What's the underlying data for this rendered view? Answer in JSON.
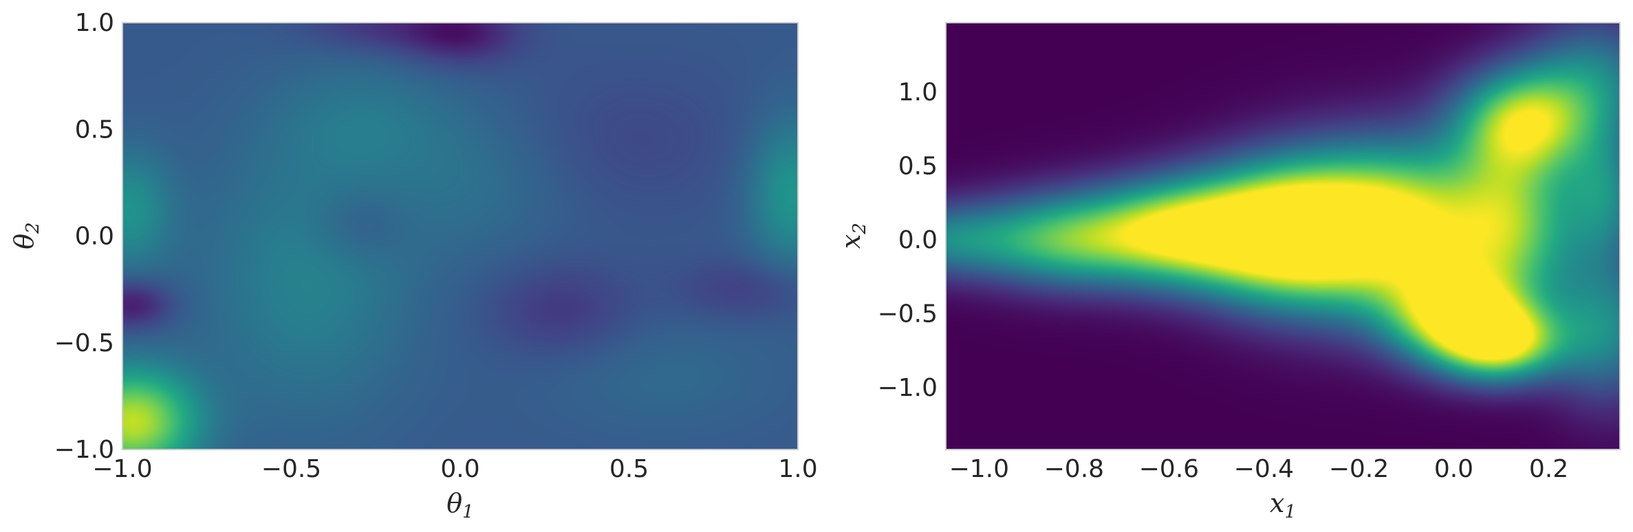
{
  "chart_data": [
    {
      "type": "heatmap",
      "id": "left",
      "colormap": "viridis",
      "title": "",
      "xlabel": "θ",
      "xlabel_sub": "1",
      "ylabel": "θ",
      "ylabel_sub": "2",
      "xlim": [
        -1.0,
        1.0
      ],
      "ylim": [
        -1.0,
        1.0
      ],
      "grid": false,
      "xticks": [
        {
          "value": -1.0,
          "label": "−1.0"
        },
        {
          "value": -0.5,
          "label": "−0.5"
        },
        {
          "value": 0.0,
          "label": "0.0"
        },
        {
          "value": 0.5,
          "label": "0.5"
        },
        {
          "value": 1.0,
          "label": "1.0"
        }
      ],
      "yticks": [
        {
          "value": 1.0,
          "label": "1.0"
        },
        {
          "value": 0.5,
          "label": "0.5"
        },
        {
          "value": 0.0,
          "label": "0.0"
        },
        {
          "value": -0.5,
          "label": "−0.5"
        },
        {
          "value": -1.0,
          "label": "−1.0"
        }
      ],
      "background_level": 0.28,
      "blobs": [
        {
          "x": -0.97,
          "y": -0.87,
          "amp": 0.62,
          "sx": 0.13,
          "sy": 0.17
        },
        {
          "x": -0.98,
          "y": 0.12,
          "amp": 0.22,
          "sx": 0.09,
          "sy": 0.2
        },
        {
          "x": 0.98,
          "y": 0.2,
          "amp": 0.24,
          "sx": 0.09,
          "sy": 0.25
        },
        {
          "x": -0.45,
          "y": -0.2,
          "amp": 0.16,
          "sx": 0.22,
          "sy": 0.45
        },
        {
          "x": -0.28,
          "y": 0.55,
          "amp": 0.1,
          "sx": 0.2,
          "sy": 0.2
        },
        {
          "x": 0.05,
          "y": 0.25,
          "amp": 0.08,
          "sx": 0.2,
          "sy": 0.25
        },
        {
          "x": 0.6,
          "y": -0.65,
          "amp": 0.06,
          "sx": 0.25,
          "sy": 0.2
        },
        {
          "x": -0.97,
          "y": -0.32,
          "amp": -0.22,
          "sx": 0.08,
          "sy": 0.08
        },
        {
          "x": 0.0,
          "y": 0.95,
          "amp": -0.22,
          "sx": 0.12,
          "sy": 0.1
        },
        {
          "x": -0.25,
          "y": 0.98,
          "amp": -0.12,
          "sx": 0.15,
          "sy": 0.08
        },
        {
          "x": 0.3,
          "y": -0.35,
          "amp": -0.12,
          "sx": 0.15,
          "sy": 0.15
        },
        {
          "x": 0.85,
          "y": -0.25,
          "amp": -0.1,
          "sx": 0.15,
          "sy": 0.1
        },
        {
          "x": -0.3,
          "y": 0.05,
          "amp": -0.08,
          "sx": 0.1,
          "sy": 0.12
        },
        {
          "x": 0.5,
          "y": 0.45,
          "amp": -0.06,
          "sx": 0.25,
          "sy": 0.25
        }
      ]
    },
    {
      "type": "heatmap",
      "id": "right",
      "colormap": "viridis",
      "title": "",
      "xlabel": "x",
      "xlabel_sub": "1",
      "ylabel": "x",
      "ylabel_sub": "2",
      "xlim": [
        -1.07,
        0.35
      ],
      "ylim": [
        -1.42,
        1.47
      ],
      "grid": false,
      "xticks": [
        {
          "value": -1.0,
          "label": "−1.0"
        },
        {
          "value": -0.8,
          "label": "−0.8"
        },
        {
          "value": -0.6,
          "label": "−0.6"
        },
        {
          "value": -0.4,
          "label": "−0.4"
        },
        {
          "value": -0.2,
          "label": "−0.2"
        },
        {
          "value": 0.0,
          "label": "0.0"
        },
        {
          "value": 0.2,
          "label": "0.2"
        }
      ],
      "yticks": [
        {
          "value": 1.0,
          "label": "1.0"
        },
        {
          "value": 0.5,
          "label": "0.5"
        },
        {
          "value": 0.0,
          "label": "0.0"
        },
        {
          "value": -0.5,
          "label": "−0.5"
        },
        {
          "value": -1.0,
          "label": "−1.0"
        }
      ],
      "background_level": 0.0,
      "blobs": [
        {
          "x": -1.07,
          "y": 0.0,
          "amp": 0.42,
          "sx": 0.12,
          "sy": 0.18
        },
        {
          "x": -0.82,
          "y": 0.0,
          "amp": 0.62,
          "sx": 0.12,
          "sy": 0.22
        },
        {
          "x": -0.6,
          "y": 0.05,
          "amp": 0.8,
          "sx": 0.12,
          "sy": 0.24
        },
        {
          "x": -0.42,
          "y": 0.05,
          "amp": 0.78,
          "sx": 0.12,
          "sy": 0.3
        },
        {
          "x": -0.28,
          "y": 0.05,
          "amp": 0.85,
          "sx": 0.12,
          "sy": 0.36
        },
        {
          "x": -0.1,
          "y": 0.1,
          "amp": 0.8,
          "sx": 0.12,
          "sy": 0.38
        },
        {
          "x": 0.0,
          "y": -0.5,
          "amp": 0.85,
          "sx": 0.1,
          "sy": 0.22
        },
        {
          "x": 0.1,
          "y": -0.7,
          "amp": 0.85,
          "sx": 0.09,
          "sy": 0.18
        },
        {
          "x": 0.15,
          "y": 0.8,
          "amp": 0.8,
          "sx": 0.1,
          "sy": 0.25
        },
        {
          "x": 0.12,
          "y": 0.1,
          "amp": 0.75,
          "sx": 0.1,
          "sy": 0.4
        },
        {
          "x": 0.3,
          "y": 1.1,
          "amp": 0.4,
          "sx": 0.1,
          "sy": 0.3
        },
        {
          "x": 0.32,
          "y": -0.6,
          "amp": 0.45,
          "sx": 0.08,
          "sy": 0.35
        },
        {
          "x": 0.32,
          "y": 0.3,
          "amp": 0.4,
          "sx": 0.06,
          "sy": 0.3
        }
      ]
    }
  ]
}
